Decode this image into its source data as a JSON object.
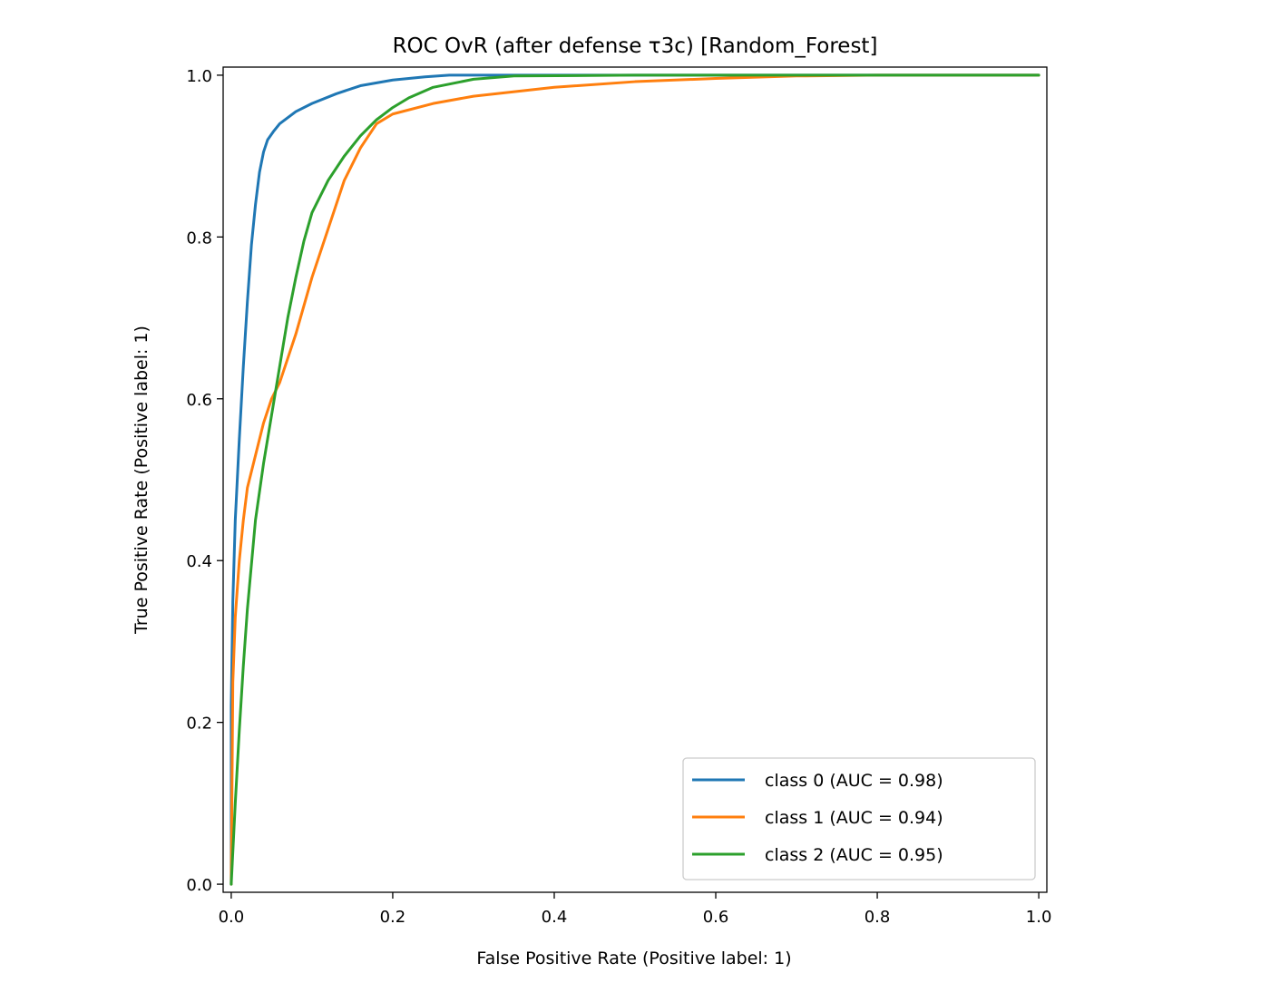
{
  "chart_data": {
    "type": "line",
    "title": "ROC OvR (after defense τ3c) [Random_Forest]",
    "xlabel": "False Positive Rate (Positive label: 1)",
    "ylabel": "True Positive Rate (Positive label: 1)",
    "xlim": [
      -0.01,
      1.01
    ],
    "ylim": [
      -0.01,
      1.01
    ],
    "xticks": [
      0.0,
      0.2,
      0.4,
      0.6,
      0.8,
      1.0
    ],
    "yticks": [
      0.0,
      0.2,
      0.4,
      0.6,
      0.8,
      1.0
    ],
    "xtick_labels": [
      "0.0",
      "0.2",
      "0.4",
      "0.6",
      "0.8",
      "1.0"
    ],
    "ytick_labels": [
      "0.0",
      "0.2",
      "0.4",
      "0.6",
      "0.8",
      "1.0"
    ],
    "grid": false,
    "legend_position": "lower-right",
    "series": [
      {
        "name": "class 0 (AUC = 0.98)",
        "color": "#1f77b4",
        "x": [
          0.0,
          0.0,
          0.002,
          0.005,
          0.01,
          0.015,
          0.02,
          0.025,
          0.03,
          0.035,
          0.04,
          0.045,
          0.052,
          0.06,
          0.08,
          0.1,
          0.13,
          0.16,
          0.2,
          0.24,
          0.27,
          0.3,
          0.5,
          0.7,
          1.0
        ],
        "y": [
          0.0,
          0.22,
          0.35,
          0.45,
          0.55,
          0.64,
          0.72,
          0.79,
          0.84,
          0.88,
          0.905,
          0.92,
          0.93,
          0.94,
          0.955,
          0.965,
          0.977,
          0.987,
          0.994,
          0.998,
          1.0,
          1.0,
          1.0,
          1.0,
          1.0
        ]
      },
      {
        "name": "class 1 (AUC = 0.94)",
        "color": "#ff7f0e",
        "x": [
          0.0,
          0.002,
          0.005,
          0.01,
          0.015,
          0.02,
          0.03,
          0.04,
          0.05,
          0.06,
          0.07,
          0.08,
          0.1,
          0.12,
          0.14,
          0.16,
          0.18,
          0.2,
          0.25,
          0.3,
          0.4,
          0.5,
          0.6,
          0.7,
          0.8,
          1.0
        ],
        "y": [
          0.0,
          0.25,
          0.33,
          0.4,
          0.45,
          0.49,
          0.53,
          0.57,
          0.6,
          0.62,
          0.65,
          0.68,
          0.75,
          0.81,
          0.87,
          0.91,
          0.94,
          0.952,
          0.965,
          0.974,
          0.985,
          0.992,
          0.996,
          0.999,
          1.0,
          1.0
        ]
      },
      {
        "name": "class 2 (AUC = 0.95)",
        "color": "#2ca02c",
        "x": [
          0.0,
          0.005,
          0.01,
          0.015,
          0.02,
          0.03,
          0.04,
          0.05,
          0.06,
          0.07,
          0.08,
          0.09,
          0.1,
          0.12,
          0.14,
          0.16,
          0.18,
          0.2,
          0.22,
          0.25,
          0.3,
          0.35,
          0.5,
          0.7,
          1.0
        ],
        "y": [
          0.0,
          0.1,
          0.19,
          0.27,
          0.34,
          0.45,
          0.52,
          0.58,
          0.64,
          0.7,
          0.75,
          0.795,
          0.83,
          0.87,
          0.9,
          0.925,
          0.945,
          0.96,
          0.972,
          0.985,
          0.995,
          0.999,
          1.0,
          1.0,
          1.0
        ]
      }
    ]
  }
}
